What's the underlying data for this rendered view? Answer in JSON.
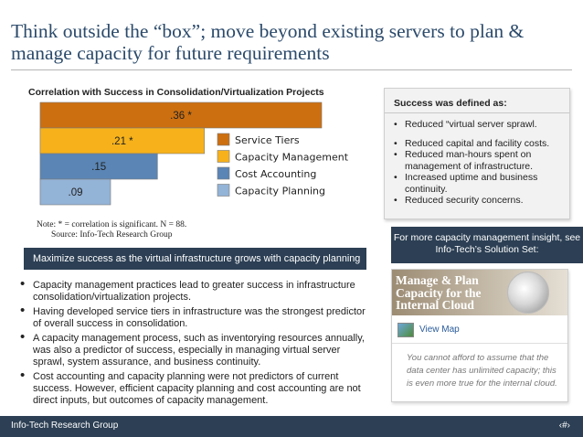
{
  "slide": {
    "title": "Think outside the “box”; move beyond existing servers to plan & manage capacity for future requirements"
  },
  "chart_data": {
    "type": "bar",
    "orientation": "horizontal",
    "title": "Correlation with Success in Consolidation/Virtualization Projects",
    "categories": [
      "Service Tiers",
      "Capacity Management",
      "Cost Accounting",
      "Capacity Planning"
    ],
    "values": [
      0.36,
      0.21,
      0.15,
      0.09
    ],
    "value_labels": [
      ".36 *",
      ".21 *",
      ".15",
      ".09"
    ],
    "colors": [
      "#cc6f10",
      "#f7b21b",
      "#5a85b5",
      "#93b3d7"
    ],
    "xlim": [
      0,
      0.36
    ],
    "grid": false,
    "legend_position": "right",
    "legend": [
      "Service Tiers",
      "Capacity Management",
      "Cost Accounting",
      "Capacity Planning"
    ],
    "note": "Note: * = correlation is significant. N = 88.",
    "source": "Source: Info-Tech Research Group"
  },
  "success_box": {
    "heading": "Success was defined as:",
    "items": [
      "Reduced “virtual server sprawl.",
      "Reduced capital and facility costs.",
      "Reduced man-hours spent on management of infrastructure.",
      "Increased uptime and business continuity.",
      "Reduced security concerns."
    ]
  },
  "banner": {
    "text": "Maximize success as the virtual infrastructure grows with capacity planning"
  },
  "body_points": [
    "Capacity management practices lead to greater success in infrastructure consolidation/virtualization projects.",
    "Having developed service tiers in infrastructure was the strongest predictor of overall success in consolidation.",
    "A capacity management process, such as inventorying resources annually, was also a predictor of success, especially in managing virtual server sprawl, system assurance, and business continuity.",
    "Cost accounting and capacity planning were not predictors of current success. However, efficient capacity planning and cost accounting are not direct inputs, but outcomes of capacity management."
  ],
  "more_banner": {
    "text": "For more capacity management insight, see Info-Tech’s Solution Set:"
  },
  "promo": {
    "title": "Manage & Plan Capacity for the Internal Cloud",
    "link": "View Map",
    "text": "You cannot afford to assume that the data center has unlimited capacity; this is even more true for the internal cloud.",
    "icons": [
      "globe-icon",
      "map-icon"
    ]
  },
  "footer": {
    "left": "Info-Tech Research Group",
    "right": "‹#›"
  }
}
